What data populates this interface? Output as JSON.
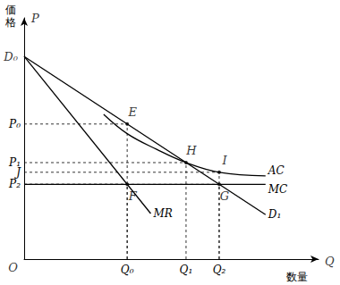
{
  "chart_data": {
    "type": "line",
    "xlabel": "数量",
    "ylabel": "価格",
    "color": "#000000",
    "grid": false,
    "xlim": [
      0,
      100
    ],
    "ylim": [
      0,
      100
    ],
    "xticks": [
      {
        "value": 35,
        "label": "Q₀"
      },
      {
        "value": 55,
        "label": "Q₁"
      },
      {
        "value": 66.25,
        "label": "Q₂"
      }
    ],
    "yticks": [
      {
        "value": 56,
        "label": "P₀"
      },
      {
        "value": 40,
        "label": "P₁"
      },
      {
        "value": 36,
        "label": "J"
      },
      {
        "value": 31,
        "label": "P₂"
      }
    ],
    "series": [
      {
        "name": "D₁",
        "x": [
          0,
          82
        ],
        "values": [
          84,
          18.4
        ]
      },
      {
        "name": "MR",
        "x": [
          0,
          43
        ],
        "values": [
          84,
          18.9
        ]
      },
      {
        "name": "AC",
        "x": [
          27,
          35,
          45,
          55,
          66.25,
          82
        ],
        "values": [
          60,
          52,
          45.5,
          40,
          36,
          34.5
        ]
      },
      {
        "name": "MC",
        "x": [
          0,
          82
        ],
        "values": [
          31,
          31
        ]
      }
    ],
    "annotations": [
      {
        "text": "P",
        "x": 0,
        "y": 100
      },
      {
        "text": "Q",
        "x": 100,
        "y": 0
      },
      {
        "text": "O",
        "x": 0,
        "y": 0
      },
      {
        "text": "D₀",
        "x": 0,
        "y": 84
      },
      {
        "text": "E",
        "x": 35,
        "y": 56
      },
      {
        "text": "F",
        "x": 35,
        "y": 31
      },
      {
        "text": "H",
        "x": 55,
        "y": 40
      },
      {
        "text": "I",
        "x": 66.25,
        "y": 36
      },
      {
        "text": "G",
        "x": 66.25,
        "y": 31
      }
    ]
  }
}
